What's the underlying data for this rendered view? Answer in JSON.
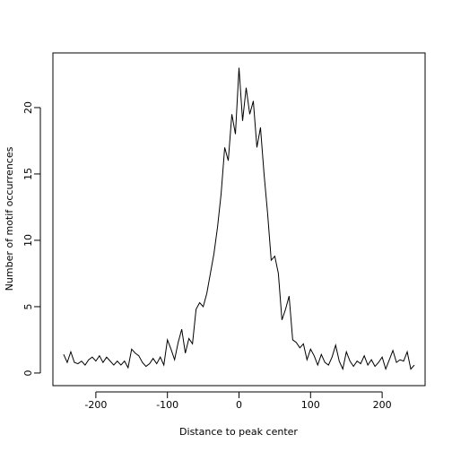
{
  "chart_data": {
    "type": "line",
    "x_label": "Distance to peak center",
    "y_label": "Number of motif occurrences",
    "x": [
      -245,
      -240,
      -235,
      -230,
      -225,
      -220,
      -215,
      -210,
      -205,
      -200,
      -195,
      -190,
      -185,
      -180,
      -175,
      -170,
      -165,
      -160,
      -155,
      -150,
      -145,
      -140,
      -135,
      -130,
      -125,
      -120,
      -115,
      -110,
      -105,
      -100,
      -95,
      -90,
      -85,
      -80,
      -75,
      -70,
      -65,
      -60,
      -55,
      -50,
      -45,
      -40,
      -35,
      -30,
      -25,
      -20,
      -15,
      -10,
      -5,
      0,
      5,
      10,
      15,
      20,
      25,
      30,
      35,
      40,
      45,
      50,
      55,
      60,
      65,
      70,
      75,
      80,
      85,
      90,
      95,
      100,
      105,
      110,
      115,
      120,
      125,
      130,
      135,
      140,
      145,
      150,
      155,
      160,
      165,
      170,
      175,
      180,
      185,
      190,
      195,
      200,
      205,
      210,
      215,
      220,
      225,
      230,
      235,
      240,
      245
    ],
    "values": [
      1.4,
      0.8,
      1.6,
      0.8,
      0.7,
      0.9,
      0.6,
      1.0,
      1.2,
      0.9,
      1.3,
      0.8,
      1.2,
      0.9,
      0.6,
      0.9,
      0.6,
      0.9,
      0.4,
      1.8,
      1.5,
      1.3,
      0.8,
      0.5,
      0.7,
      1.1,
      0.7,
      1.2,
      0.6,
      2.5,
      1.8,
      1.0,
      2.3,
      3.3,
      1.5,
      2.6,
      2.2,
      4.8,
      5.3,
      5.0,
      6.0,
      7.5,
      9.0,
      11.0,
      13.5,
      17.0,
      16.0,
      19.5,
      18.0,
      23.0,
      19.0,
      21.5,
      19.5,
      20.5,
      17.0,
      18.5,
      15.0,
      12.0,
      8.5,
      8.8,
      7.5,
      4.0,
      4.8,
      5.8,
      2.5,
      2.3,
      1.9,
      2.2,
      1.0,
      1.8,
      1.3,
      0.6,
      1.4,
      0.8,
      0.6,
      1.2,
      2.1,
      0.9,
      0.3,
      1.6,
      0.9,
      0.5,
      0.9,
      0.7,
      1.3,
      0.6,
      1.0,
      0.5,
      0.8,
      1.2,
      0.3,
      1.0,
      1.7,
      0.8,
      1.0,
      0.9,
      1.6,
      0.3,
      0.6
    ],
    "color": "#000000",
    "xlim": [
      -260,
      260
    ],
    "xticks": [
      -200,
      -100,
      0,
      100,
      200
    ],
    "ylim": [
      -0.95,
      24.12
    ],
    "yticks": [
      0,
      5,
      10,
      15,
      20
    ]
  }
}
